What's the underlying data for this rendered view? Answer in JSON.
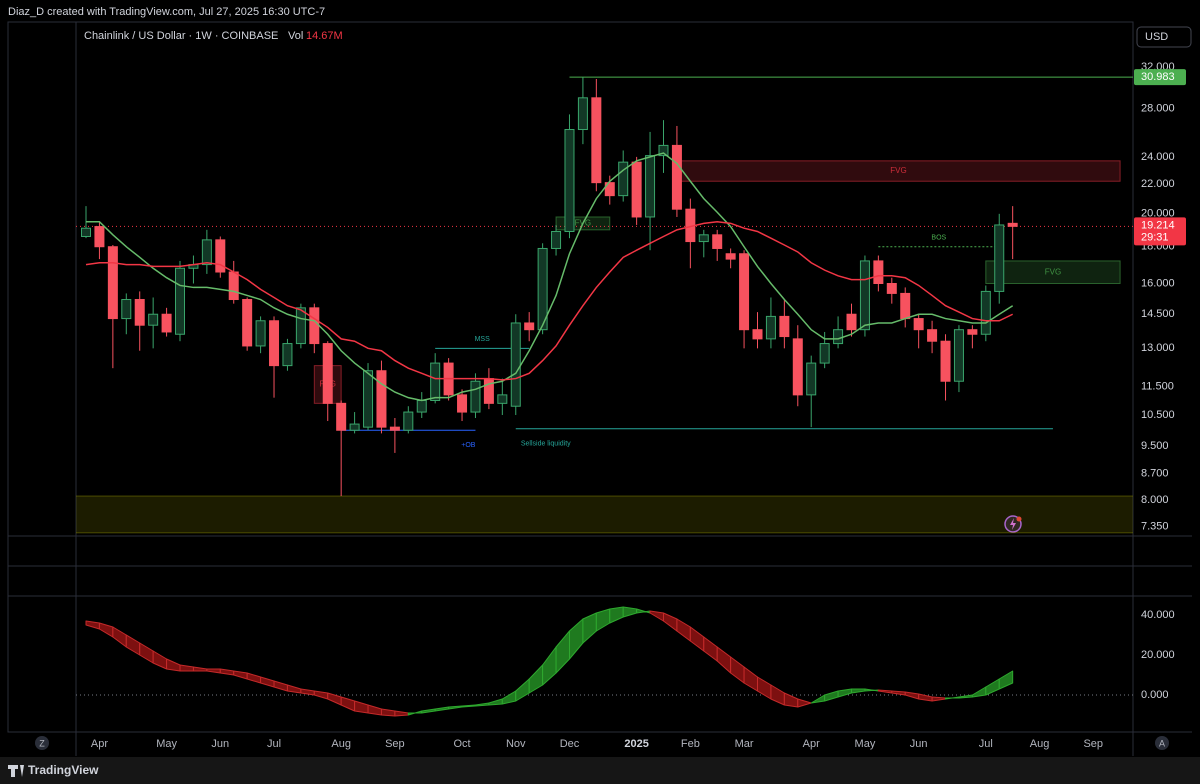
{
  "top_bar": "Diaz_D created with TradingView.com, Jul 27, 2025 16:30 UTC-7",
  "header": {
    "symbol": "Chainlink / US Dollar · 1W · COINBASE",
    "volume_label": "Vol",
    "volume": "14.67M"
  },
  "controls": {
    "currency": "USD",
    "zoom": "Z",
    "auto": "A"
  },
  "brand": "TradingView",
  "chart_data": {
    "type": "candlestick",
    "log_scale": true,
    "grid": false,
    "up_color": "#3aa56b",
    "down_color": "#f7525f",
    "categories": [
      null,
      "Apr",
      null,
      null,
      null,
      null,
      "May",
      null,
      null,
      null,
      "Jun",
      null,
      null,
      null,
      "Jul",
      null,
      null,
      null,
      null,
      "Aug",
      null,
      null,
      null,
      "Sep",
      null,
      null,
      null,
      null,
      "Oct",
      null,
      null,
      null,
      "Nov",
      null,
      null,
      null,
      "Dec",
      null,
      null,
      null,
      null,
      "2025",
      null,
      null,
      null,
      "Feb",
      null,
      null,
      null,
      "Mar",
      null,
      null,
      null,
      null,
      "Apr",
      null,
      null,
      null,
      "May",
      null,
      null,
      null,
      "Jun",
      null,
      null,
      null,
      null,
      "Jul",
      null,
      null,
      null,
      "Aug",
      null,
      null,
      null,
      "Sep"
    ],
    "open": [
      18.6,
      19.2,
      18.0,
      14.3,
      15.2,
      14.0,
      14.5,
      13.6,
      16.8,
      17.0,
      18.4,
      16.6,
      15.2,
      13.1,
      14.2,
      12.3,
      13.2,
      14.8,
      13.2,
      10.9,
      10.0,
      10.1,
      12.1,
      10.1,
      10.0,
      10.6,
      11.0,
      12.4,
      11.2,
      10.6,
      11.8,
      10.9,
      10.8,
      14.1,
      13.8,
      17.9,
      18.9,
      26.2,
      29.0,
      22.1,
      21.2,
      23.6,
      19.8,
      24.1,
      24.9,
      20.3,
      18.3,
      18.7,
      17.6,
      17.6,
      13.8,
      13.4,
      14.4,
      13.4,
      11.2,
      12.4,
      13.2,
      14.5,
      13.8,
      17.2,
      16.0,
      15.5,
      14.3,
      13.8,
      13.3,
      11.7,
      13.8,
      13.6,
      15.6,
      19.4,
      null,
      null,
      null,
      null,
      null,
      null
    ],
    "high": [
      20.5,
      19.5,
      18.1,
      15.5,
      15.6,
      15.3,
      14.8,
      17.2,
      17.5,
      19.0,
      18.6,
      17.2,
      15.3,
      14.4,
      14.4,
      13.4,
      15.0,
      15.0,
      13.3,
      11.0,
      10.6,
      12.4,
      12.5,
      10.4,
      10.8,
      11.3,
      12.8,
      12.6,
      11.4,
      12.0,
      12.2,
      11.8,
      14.5,
      14.6,
      18.2,
      19.3,
      27.5,
      30.983,
      30.8,
      22.6,
      24.5,
      24.0,
      26.0,
      27.0,
      26.5,
      21.0,
      19.0,
      19.0,
      17.9,
      17.8,
      14.6,
      15.3,
      15.2,
      14.0,
      12.7,
      13.7,
      14.4,
      15.0,
      17.5,
      17.5,
      16.3,
      15.8,
      14.5,
      14.2,
      13.6,
      14.0,
      14.0,
      15.9,
      20.0,
      20.5,
      null,
      null,
      null,
      null,
      null,
      null
    ],
    "low": [
      18.5,
      17.3,
      12.2,
      13.6,
      12.9,
      13.0,
      13.5,
      13.3,
      16.0,
      16.5,
      16.3,
      15.0,
      12.9,
      12.8,
      11.1,
      12.1,
      13.0,
      12.8,
      10.3,
      8.1,
      9.9,
      10.0,
      9.9,
      9.3,
      9.9,
      10.4,
      10.9,
      11.0,
      10.3,
      10.4,
      10.7,
      10.5,
      10.5,
      13.3,
      13.6,
      17.5,
      18.5,
      25.0,
      21.5,
      20.6,
      20.8,
      19.3,
      17.8,
      22.8,
      19.8,
      16.8,
      17.4,
      17.2,
      16.8,
      13.0,
      13.0,
      13.0,
      13.0,
      10.8,
      10.1,
      12.2,
      13.0,
      13.5,
      13.5,
      15.6,
      15.0,
      13.9,
      13.0,
      12.8,
      11.0,
      11.3,
      13.0,
      13.3,
      15.0,
      17.3,
      null,
      null,
      null,
      null,
      null,
      null
    ],
    "close": [
      19.1,
      18.0,
      14.3,
      15.2,
      14.0,
      14.5,
      13.7,
      16.8,
      17.0,
      18.4,
      16.6,
      15.2,
      13.1,
      14.2,
      12.3,
      13.2,
      14.8,
      13.2,
      10.9,
      10.0,
      10.2,
      12.1,
      10.1,
      10.0,
      10.6,
      11.0,
      12.4,
      11.2,
      10.6,
      11.7,
      10.9,
      11.2,
      14.1,
      13.8,
      17.9,
      18.9,
      26.2,
      29.0,
      22.1,
      21.2,
      23.6,
      19.8,
      24.1,
      24.9,
      20.3,
      18.3,
      18.7,
      17.9,
      17.3,
      13.8,
      13.4,
      14.4,
      13.5,
      11.2,
      12.4,
      13.2,
      13.8,
      13.8,
      17.2,
      16.0,
      15.5,
      14.3,
      13.8,
      13.3,
      11.7,
      13.8,
      13.6,
      15.6,
      19.3,
      19.214,
      null,
      null,
      null,
      null,
      null,
      null
    ],
    "lines": [
      {
        "color": "#66bb6a",
        "values": [
          19.5,
          19.5,
          18.7,
          18.0,
          17.4,
          16.8,
          16.3,
          15.9,
          15.8,
          15.8,
          15.7,
          15.6,
          15.4,
          15.2,
          14.8,
          14.5,
          14.3,
          14.2,
          13.6,
          12.9,
          12.4,
          12.0,
          11.6,
          11.3,
          11.1,
          11.0,
          11.1,
          11.1,
          11.3,
          11.4,
          11.6,
          11.7,
          12.0,
          12.9,
          14.0,
          15.4,
          17.6,
          19.4,
          21.0,
          22.2,
          23.0,
          23.7,
          24.0,
          24.3,
          23.5,
          22.2,
          21.0,
          20.1,
          19.2,
          18.0,
          16.9,
          16.0,
          15.2,
          14.5,
          13.8,
          13.4,
          13.4,
          13.6,
          14.0,
          14.1,
          14.1,
          14.3,
          14.5,
          14.5,
          14.3,
          14.2,
          14.1,
          14.1,
          14.5,
          14.9,
          null,
          null,
          null,
          null,
          null,
          null
        ]
      },
      {
        "color": "#f23645",
        "values": [
          17.0,
          17.1,
          17.1,
          17.0,
          17.0,
          16.9,
          16.9,
          16.9,
          17.0,
          17.1,
          17.0,
          16.6,
          16.2,
          15.7,
          15.3,
          14.9,
          14.7,
          14.3,
          13.9,
          13.4,
          13.3,
          13.0,
          12.9,
          12.5,
          12.2,
          12.0,
          11.8,
          11.8,
          11.8,
          11.8,
          11.8,
          11.75,
          11.8,
          12.0,
          12.5,
          13.1,
          14.0,
          14.9,
          15.8,
          16.6,
          17.4,
          17.8,
          18.2,
          18.6,
          19.0,
          19.2,
          19.4,
          19.5,
          19.4,
          19.1,
          18.9,
          18.5,
          18.1,
          17.7,
          17.1,
          16.7,
          16.4,
          16.2,
          16.2,
          16.4,
          16.4,
          16.3,
          15.9,
          15.4,
          14.9,
          14.6,
          14.3,
          14.2,
          14.2,
          14.5,
          null,
          null,
          null,
          null,
          null,
          null
        ]
      }
    ],
    "ylim": [
      7.15,
      36.97
    ],
    "yticks": [
      {
        "value": 32,
        "label": "32.000"
      },
      {
        "value": 28,
        "label": "28.000"
      },
      {
        "value": 24,
        "label": "24.000"
      },
      {
        "value": 22,
        "label": "22.000"
      },
      {
        "value": 20,
        "label": "20.000"
      },
      {
        "value": 18,
        "label": "18.000"
      },
      {
        "value": 16,
        "label": "16.000"
      },
      {
        "value": 14.5,
        "label": "14.500"
      },
      {
        "value": 13,
        "label": "13.000"
      },
      {
        "value": 11.5,
        "label": "11.500"
      },
      {
        "value": 10.5,
        "label": "10.500"
      },
      {
        "value": 9.5,
        "label": "9.500"
      },
      {
        "value": 8.7,
        "label": "8.700"
      },
      {
        "value": 8,
        "label": "8.000"
      },
      {
        "value": 7.35,
        "label": "7.350"
      }
    ],
    "price_line": {
      "value": 19.214,
      "countdown": "29:31",
      "color": "#f23645"
    },
    "high_line": {
      "value": 30.983,
      "start": 36,
      "color": "#4caf50"
    },
    "zones": [
      {
        "label": "FVG",
        "top": 23.7,
        "bottom": 22.2,
        "start": 44,
        "end": 77,
        "color": "#f23645"
      },
      {
        "label": "FVG",
        "top": 17.2,
        "bottom": 16.0,
        "start": 67,
        "end": 77,
        "color": "#4caf50"
      },
      {
        "label": "FVG",
        "top": 12.3,
        "bottom": 10.9,
        "start": 17,
        "end": 19,
        "color": "#f23645"
      },
      {
        "label": "FVG",
        "top": 19.8,
        "bottom": 19.0,
        "start": 35,
        "end": 39,
        "color": "#4caf50"
      },
      {
        "top": 8.1,
        "bottom": 7.2,
        "start": -1,
        "end": 79,
        "color": "#8a8a00"
      }
    ],
    "marked_lines": [
      {
        "label": "MSS",
        "value": 13.0,
        "start": 26,
        "end": 33,
        "color": "#26a69a",
        "label_side": "above"
      },
      {
        "label": "BOS",
        "value": 18.0,
        "start": 59,
        "end": 68,
        "color": "#4caf50",
        "label_side": "above",
        "dashed": true
      },
      {
        "label": "+OB",
        "value": 10.0,
        "start": 19,
        "end": 29,
        "color": "#2962ff",
        "label_side": "below"
      },
      {
        "label": "Sellside liquidity",
        "value": 10.05,
        "start": 32,
        "end": 72,
        "color": "#26a69a",
        "label_side": "below"
      }
    ]
  },
  "oscillator": {
    "type": "band",
    "fast": [
      35,
      33,
      29,
      24,
      20,
      16,
      13,
      12,
      12,
      12,
      11,
      10,
      8,
      6,
      4,
      2,
      1,
      0,
      -2,
      -5,
      -8,
      -9,
      -10,
      -10.5,
      -10,
      -8,
      -7,
      -6,
      -5.5,
      -5,
      -4,
      -2,
      2,
      8,
      15,
      24,
      32,
      38,
      41,
      43,
      44,
      43,
      41,
      37,
      32,
      27,
      22,
      17,
      11,
      6,
      2,
      -2,
      -5,
      -6,
      -4,
      0,
      2,
      3,
      3,
      2,
      1,
      0,
      -2,
      -3,
      -2,
      -1,
      0,
      4,
      8,
      12,
      null,
      null,
      null,
      null,
      null,
      null
    ],
    "slow": [
      37,
      36,
      34,
      30,
      26,
      22,
      18,
      15,
      14,
      13,
      13,
      12,
      11,
      9,
      7,
      5,
      3,
      2,
      1,
      -1,
      -3,
      -5,
      -7,
      -8,
      -9,
      -9,
      -8,
      -7,
      -6,
      -5.5,
      -5,
      -4.5,
      -3,
      1,
      5,
      11,
      18,
      26,
      32,
      36,
      39,
      41,
      42,
      41,
      38,
      34,
      29,
      24,
      19,
      14,
      9,
      5,
      1,
      -2,
      -4,
      -3,
      -1,
      1,
      2,
      2.5,
      2,
      1.5,
      0.5,
      -1,
      -1.5,
      -1.5,
      -1,
      0,
      3,
      6,
      null,
      null,
      null,
      null,
      null,
      null
    ],
    "up_color": "#1f7a1f",
    "down_color": "#7d1010",
    "baseline": 0,
    "ylim": [
      -18.5,
      49
    ],
    "yticks": [
      {
        "value": 40,
        "label": "40.000"
      },
      {
        "value": 20,
        "label": "20.000"
      },
      {
        "value": 0,
        "label": "0.000"
      }
    ]
  }
}
